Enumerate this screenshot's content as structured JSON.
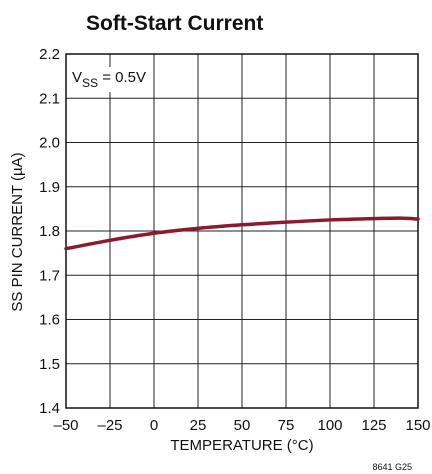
{
  "chart_data": {
    "type": "line",
    "title": "Soft-Start Current",
    "xlabel": "TEMPERATURE (°C)",
    "ylabel": "SS PIN CURRENT (µA)",
    "xlim": [
      -50,
      150
    ],
    "ylim": [
      1.4,
      2.2
    ],
    "xticks": [
      -50,
      -25,
      0,
      25,
      50,
      75,
      100,
      125,
      150
    ],
    "xtick_labels": [
      "–50",
      "–25",
      "0",
      "25",
      "50",
      "75",
      "100",
      "125",
      "150"
    ],
    "yticks": [
      1.4,
      1.5,
      1.6,
      1.7,
      1.8,
      1.9,
      2.0,
      2.1,
      2.2
    ],
    "ytick_labels": [
      "1.4",
      "1.5",
      "1.6",
      "1.7",
      "1.8",
      "1.9",
      "2.0",
      "2.1",
      "2.2"
    ],
    "grid": true,
    "annotation": {
      "prefix": "V",
      "subscript": "SS",
      "suffix": " = 0.5V"
    },
    "figure_id": "8641 G25",
    "series": [
      {
        "color": "#8b1a2e",
        "x": [
          -50,
          -25,
          0,
          25,
          50,
          75,
          100,
          125,
          140,
          150
        ],
        "y": [
          1.76,
          1.779,
          1.795,
          1.806,
          1.814,
          1.82,
          1.825,
          1.828,
          1.829,
          1.827
        ]
      }
    ]
  }
}
